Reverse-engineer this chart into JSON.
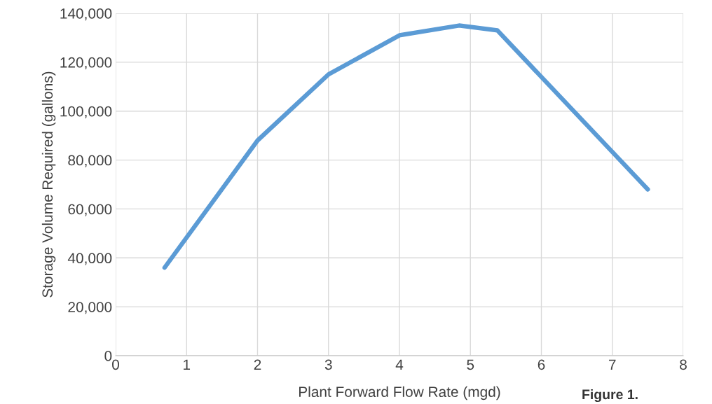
{
  "chart_data": {
    "type": "line",
    "xlabel": "Plant Forward Flow Rate (mgd)",
    "ylabel": "Storage Volume Required (gallons)",
    "annotations": [
      "Figure 1."
    ],
    "series": [
      {
        "color": "#5b9bd5",
        "x": [
          0.69,
          2.0,
          3.0,
          4.0,
          4.84,
          5.38,
          7.5
        ],
        "values": [
          36000,
          88000,
          115000,
          131000,
          135000,
          133000,
          68000
        ]
      }
    ],
    "xlim": [
      0,
      8
    ],
    "xticks": [
      0,
      1,
      2,
      3,
      4,
      5,
      6,
      7,
      8
    ],
    "ylim": [
      0,
      140000
    ],
    "yticks": [
      {
        "value": 0,
        "label": "0"
      },
      {
        "value": 20000,
        "label": "20,000"
      },
      {
        "value": 40000,
        "label": "40,000"
      },
      {
        "value": 60000,
        "label": "60,000"
      },
      {
        "value": 80000,
        "label": "80,000"
      },
      {
        "value": 100000,
        "label": "100,000"
      },
      {
        "value": 120000,
        "label": "120,000"
      },
      {
        "value": 140000,
        "label": "140,000"
      }
    ],
    "grid": true
  }
}
